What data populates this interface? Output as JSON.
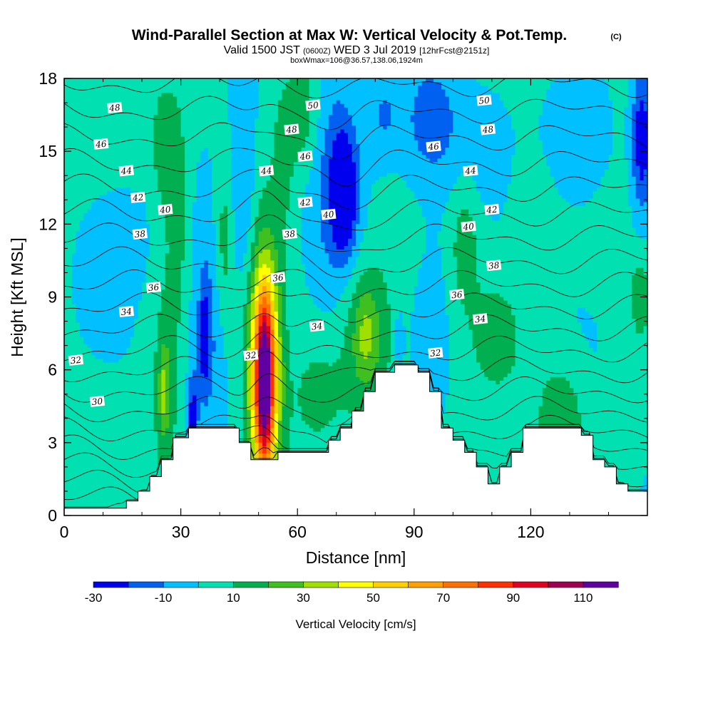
{
  "title": {
    "main": "Wind-Parallel Section at Max W: Vertical Velocity & Pot.Temp.",
    "copyright": "(C)",
    "valid_prefix": "Valid 1500 JST",
    "valid_utc": "(0600Z)",
    "valid_date": "WED 3 Jul 2019",
    "forecast": "[12hrFcst@2151z]",
    "box": "boxWmax=106@36.57,138.06,1924m"
  },
  "chart_data": {
    "type": "contour",
    "xlabel": "Distance [nm]",
    "ylabel": "Height [Kft MSL]",
    "xlim": [
      0,
      150
    ],
    "ylim": [
      0,
      18
    ],
    "x_ticks": [
      0,
      30,
      60,
      90,
      120
    ],
    "y_ticks": [
      0,
      3,
      6,
      9,
      12,
      15,
      18
    ],
    "colorbar": {
      "label": "Vertical Velocity [cm/s]",
      "levels": [
        -30,
        -20,
        -10,
        0,
        10,
        20,
        30,
        40,
        50,
        60,
        70,
        80,
        90,
        100,
        110,
        120
      ],
      "tick_labels": [
        -30,
        -10,
        10,
        30,
        50,
        70,
        90,
        110
      ],
      "colors": [
        "#0000ee",
        "#0060f0",
        "#00c0ff",
        "#00e0b0",
        "#00b050",
        "#40c020",
        "#a0e000",
        "#ffff00",
        "#ffd000",
        "#ffa000",
        "#ff7000",
        "#ff3000",
        "#e00020",
        "#a00050",
        "#6000a0"
      ]
    },
    "terrain_kft": [
      [
        0,
        0.3
      ],
      [
        16,
        0.3
      ],
      [
        16,
        0.6
      ],
      [
        19,
        0.6
      ],
      [
        19,
        1.0
      ],
      [
        22,
        1.0
      ],
      [
        22,
        1.6
      ],
      [
        25,
        1.6
      ],
      [
        25,
        2.3
      ],
      [
        28,
        2.3
      ],
      [
        28,
        3.2
      ],
      [
        32,
        3.2
      ],
      [
        32,
        3.6
      ],
      [
        45,
        3.6
      ],
      [
        45,
        3.0
      ],
      [
        48,
        3.0
      ],
      [
        48,
        2.3
      ],
      [
        55,
        2.3
      ],
      [
        55,
        2.6
      ],
      [
        68,
        2.6
      ],
      [
        68,
        3.1
      ],
      [
        71,
        3.1
      ],
      [
        71,
        3.6
      ],
      [
        74,
        3.6
      ],
      [
        74,
        4.3
      ],
      [
        77,
        4.3
      ],
      [
        77,
        5.1
      ],
      [
        80,
        5.1
      ],
      [
        80,
        5.9
      ],
      [
        85,
        5.9
      ],
      [
        85,
        6.2
      ],
      [
        91,
        6.2
      ],
      [
        91,
        5.9
      ],
      [
        94,
        5.9
      ],
      [
        94,
        5.1
      ],
      [
        97,
        5.1
      ],
      [
        97,
        3.6
      ],
      [
        100,
        3.6
      ],
      [
        100,
        3.1
      ],
      [
        103,
        3.1
      ],
      [
        103,
        2.6
      ],
      [
        106,
        2.6
      ],
      [
        106,
        2.0
      ],
      [
        109,
        2.0
      ],
      [
        109,
        1.3
      ],
      [
        112,
        1.3
      ],
      [
        112,
        2.0
      ],
      [
        115,
        2.0
      ],
      [
        115,
        2.6
      ],
      [
        118,
        2.6
      ],
      [
        118,
        3.6
      ],
      [
        133,
        3.6
      ],
      [
        133,
        3.3
      ],
      [
        136,
        3.3
      ],
      [
        136,
        2.3
      ],
      [
        139,
        2.3
      ],
      [
        139,
        2.0
      ],
      [
        142,
        2.0
      ],
      [
        142,
        1.3
      ],
      [
        145,
        1.3
      ],
      [
        145,
        1.0
      ],
      [
        150,
        1.0
      ]
    ],
    "velocity_features": [
      {
        "x": 51.5,
        "y": 6.0,
        "rx": 4.2,
        "ry": 4.8,
        "w": 60
      },
      {
        "x": 51.5,
        "y": 5.5,
        "rx": 2.8,
        "ry": 3.8,
        "w": 50
      },
      {
        "x": 51.5,
        "y": 5.3,
        "rx": 1.6,
        "ry": 2.8,
        "w": 30
      },
      {
        "x": 26,
        "y": 5.0,
        "rx": 3.0,
        "ry": 4.0,
        "w": 18
      },
      {
        "x": 25.5,
        "y": 5.0,
        "rx": 1.0,
        "ry": 1.5,
        "w": 15
      },
      {
        "x": 78,
        "y": 7.2,
        "rx": 7.0,
        "ry": 3.5,
        "w": 18
      },
      {
        "x": 77.5,
        "y": 7.5,
        "rx": 3.0,
        "ry": 1.8,
        "w": 14
      },
      {
        "x": 103,
        "y": 11.0,
        "rx": 3.5,
        "ry": 2.5,
        "w": 14
      },
      {
        "x": 128,
        "y": 4.0,
        "rx": 6.0,
        "ry": 2.5,
        "w": 15
      },
      {
        "x": 37,
        "y": 8.0,
        "rx": 4.5,
        "ry": 5.0,
        "w": -18
      },
      {
        "x": 36,
        "y": 7.3,
        "rx": 1.2,
        "ry": 1.8,
        "w": -25
      },
      {
        "x": 33,
        "y": 4.2,
        "rx": 1.2,
        "ry": 1.6,
        "w": -25
      },
      {
        "x": 72,
        "y": 13.2,
        "rx": 3.0,
        "ry": 2.2,
        "w": -32
      },
      {
        "x": 70,
        "y": 14.0,
        "rx": 6.5,
        "ry": 5.5,
        "w": -18
      },
      {
        "x": 46,
        "y": 13.5,
        "rx": 3.2,
        "ry": 4.5,
        "w": -15
      },
      {
        "x": 94,
        "y": 16.0,
        "rx": 9.0,
        "ry": 2.8,
        "w": -18
      },
      {
        "x": 132,
        "y": 15.5,
        "rx": 8.5,
        "ry": 2.8,
        "w": -15
      },
      {
        "x": 148.5,
        "y": 15.5,
        "rx": 2.5,
        "ry": 3.0,
        "w": -30
      },
      {
        "x": 82,
        "y": 16.5,
        "rx": 4.0,
        "ry": 2.0,
        "w": -12
      },
      {
        "x": 95,
        "y": 9.0,
        "rx": 6.0,
        "ry": 5.0,
        "w": -6
      },
      {
        "x": 14,
        "y": 12.0,
        "rx": 10.0,
        "ry": 3.0,
        "w": -6
      },
      {
        "x": 29,
        "y": 13.0,
        "rx": 3.0,
        "ry": 4.5,
        "w": 14
      },
      {
        "x": 25,
        "y": 15.0,
        "rx": 2.5,
        "ry": 2.5,
        "w": 12
      },
      {
        "x": 61,
        "y": 16.5,
        "rx": 5.0,
        "ry": 2.5,
        "w": 15
      },
      {
        "x": 56,
        "y": 14.0,
        "rx": 2.5,
        "ry": 3.0,
        "w": 10
      },
      {
        "x": 41,
        "y": 11.0,
        "rx": 2.5,
        "ry": 3.5,
        "w": 14
      },
      {
        "x": 65,
        "y": 5.0,
        "rx": 6.0,
        "ry": 2.0,
        "w": 10
      },
      {
        "x": 111,
        "y": 7.5,
        "rx": 6.0,
        "ry": 2.0,
        "w": 10
      },
      {
        "x": 120,
        "y": 13.5,
        "rx": 8.0,
        "ry": 2.0,
        "w": 4
      },
      {
        "x": 110,
        "y": 15.0,
        "rx": 4.0,
        "ry": 2.0,
        "w": -8
      },
      {
        "x": 148,
        "y": 9.0,
        "rx": 2.0,
        "ry": 1.5,
        "w": 15
      },
      {
        "x": 6,
        "y": 9.0,
        "rx": 5.0,
        "ry": 2.0,
        "w": -3
      },
      {
        "x": 86,
        "y": 7.3,
        "rx": 1.2,
        "ry": 1.0,
        "w": -15
      }
    ],
    "theta_levels": [
      28,
      29,
      30,
      31,
      32,
      33,
      34,
      35,
      36,
      37,
      38,
      39,
      40,
      41,
      42,
      43,
      44,
      45,
      46,
      47,
      48,
      49,
      50
    ],
    "theta_labels": [
      {
        "v": "48",
        "x": 13,
        "y": 16.8
      },
      {
        "v": "46",
        "x": 9.5,
        "y": 15.3
      },
      {
        "v": "44",
        "x": 16,
        "y": 14.2
      },
      {
        "v": "42",
        "x": 19,
        "y": 13.1
      },
      {
        "v": "40",
        "x": 26,
        "y": 12.6
      },
      {
        "v": "38",
        "x": 19.5,
        "y": 11.6
      },
      {
        "v": "36",
        "x": 23,
        "y": 9.4
      },
      {
        "v": "34",
        "x": 16,
        "y": 8.4
      },
      {
        "v": "32",
        "x": 3,
        "y": 6.4
      },
      {
        "v": "30",
        "x": 8.5,
        "y": 4.7
      },
      {
        "v": "50",
        "x": 64,
        "y": 16.9
      },
      {
        "v": "48",
        "x": 58.5,
        "y": 15.9
      },
      {
        "v": "46",
        "x": 62,
        "y": 14.8
      },
      {
        "v": "44",
        "x": 52,
        "y": 14.2
      },
      {
        "v": "42",
        "x": 62,
        "y": 12.9
      },
      {
        "v": "40",
        "x": 68,
        "y": 12.4
      },
      {
        "v": "38",
        "x": 58,
        "y": 11.6
      },
      {
        "v": "36",
        "x": 55,
        "y": 9.8
      },
      {
        "v": "34",
        "x": 65,
        "y": 7.8
      },
      {
        "v": "32",
        "x": 48,
        "y": 6.6
      },
      {
        "v": "50",
        "x": 108,
        "y": 17.1
      },
      {
        "v": "48",
        "x": 109,
        "y": 15.9
      },
      {
        "v": "46",
        "x": 95,
        "y": 15.2
      },
      {
        "v": "44",
        "x": 104.5,
        "y": 14.2
      },
      {
        "v": "42",
        "x": 110,
        "y": 12.6
      },
      {
        "v": "40",
        "x": 104,
        "y": 11.9
      },
      {
        "v": "38",
        "x": 110.5,
        "y": 10.3
      },
      {
        "v": "36",
        "x": 101,
        "y": 9.1
      },
      {
        "v": "34",
        "x": 107,
        "y": 8.1
      },
      {
        "v": "32",
        "x": 95.5,
        "y": 6.7
      }
    ]
  }
}
